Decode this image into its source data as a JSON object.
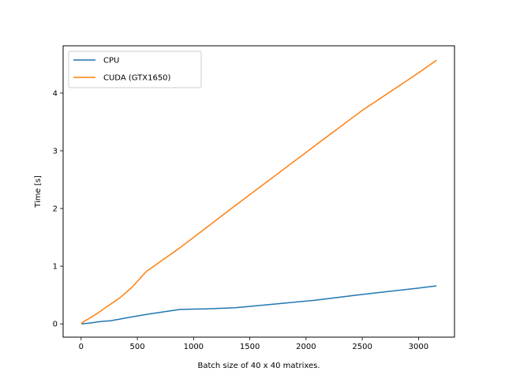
{
  "chart_data": {
    "type": "line",
    "title": "",
    "xlabel": "Batch size of 40 x 40 matrixes.",
    "ylabel": "Time [s]",
    "xlim": [
      -160,
      3320
    ],
    "ylim": [
      -0.23,
      4.82
    ],
    "xticks": [
      0,
      500,
      1000,
      1500,
      2000,
      2500,
      3000
    ],
    "yticks": [
      0,
      1,
      2,
      3,
      4
    ],
    "grid": false,
    "legend_position": "top-left",
    "series": [
      {
        "name": "CPU",
        "color": "#1f77b4",
        "x": [
          1,
          50,
          100,
          150,
          200,
          260,
          350,
          450,
          600,
          880,
          1100,
          1370,
          1700,
          2080,
          2500,
          3000,
          3160
        ],
        "y": [
          0.0,
          0.01,
          0.02,
          0.035,
          0.045,
          0.055,
          0.085,
          0.12,
          0.17,
          0.25,
          0.26,
          0.28,
          0.34,
          0.41,
          0.51,
          0.62,
          0.66
        ]
      },
      {
        "name": "CUDA (GTX1650)",
        "color": "#ff7f0e",
        "x": [
          1,
          30,
          60,
          100,
          150,
          200,
          260,
          350,
          450,
          580,
          880,
          1370,
          2080,
          2500,
          3000,
          3160
        ],
        "y": [
          0.0,
          0.05,
          0.08,
          0.13,
          0.19,
          0.26,
          0.34,
          0.46,
          0.63,
          0.91,
          1.32,
          2.05,
          3.09,
          3.7,
          4.35,
          4.57
        ]
      }
    ]
  }
}
